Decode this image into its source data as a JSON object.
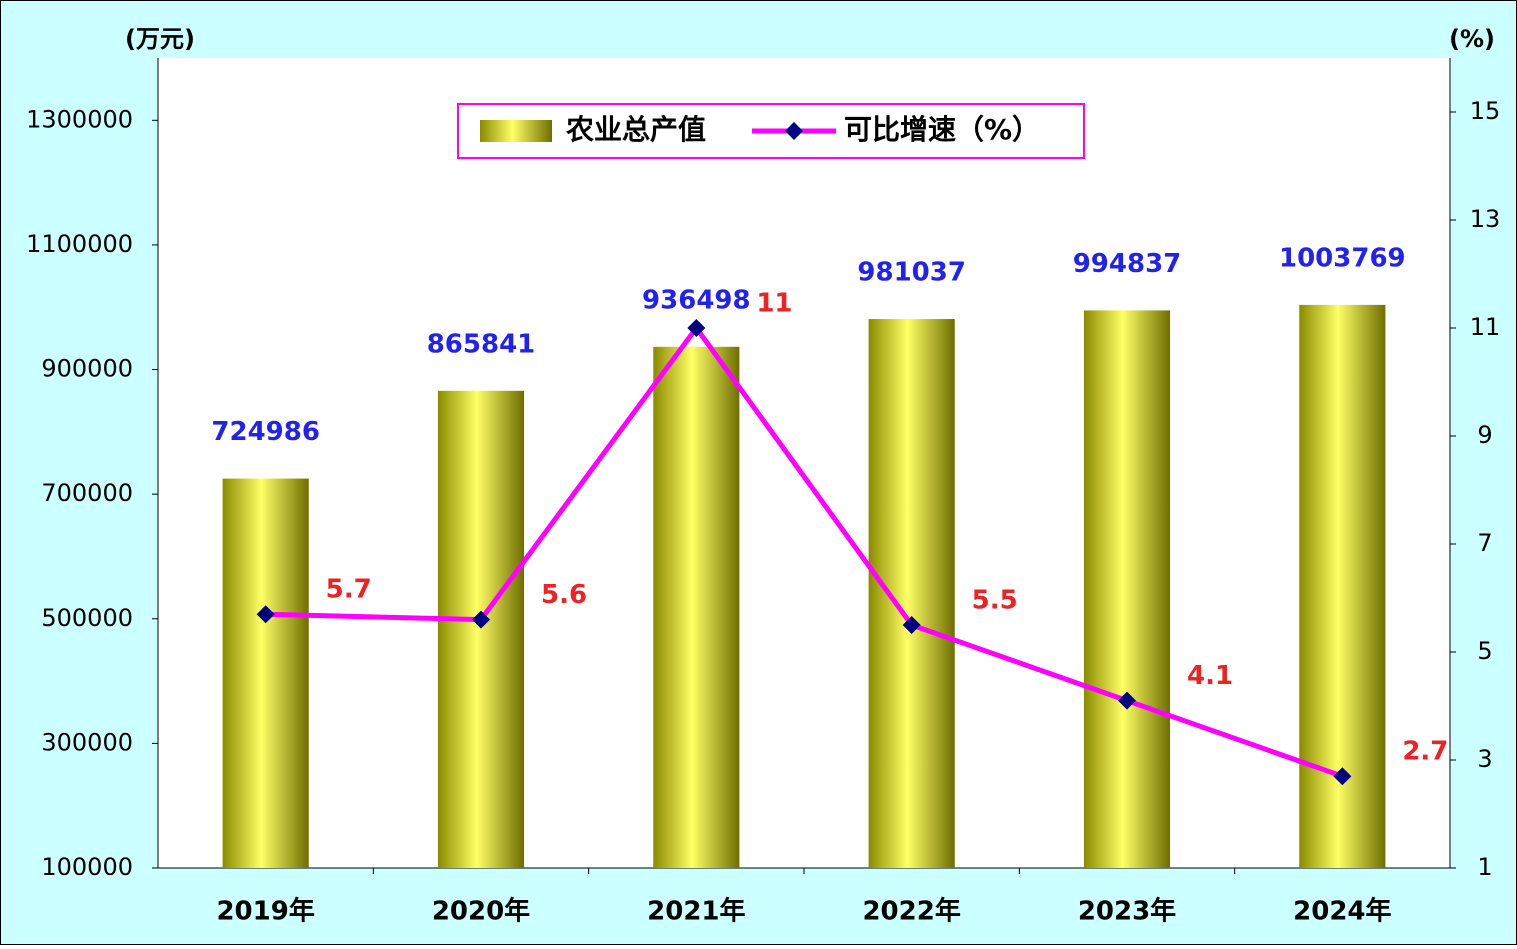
{
  "chart_data": {
    "type": "bar",
    "y_label": "(万元)",
    "y2_label": "(%)",
    "categories": [
      "2019年",
      "2020年",
      "2021年",
      "2022年",
      "2023年",
      "2024年"
    ],
    "series": [
      {
        "name": "农业总产值",
        "type": "bar",
        "color": "#cccc00",
        "values": [
          724986,
          865841,
          936498,
          981037,
          994837,
          1003769
        ]
      },
      {
        "name": "可比增速（%）",
        "type": "line",
        "axis": "y2",
        "color": "#ff00ff",
        "marker_color": "#000080",
        "values": [
          5.7,
          5.6,
          11,
          5.5,
          4.1,
          2.7
        ]
      }
    ],
    "ylim": [
      100000,
      1400000
    ],
    "yticks": [
      100000,
      300000,
      500000,
      700000,
      900000,
      1100000,
      1300000
    ],
    "y2lim": [
      1,
      16
    ],
    "y2ticks": [
      1,
      3,
      5,
      7,
      9,
      11,
      13,
      15
    ],
    "legend": "top"
  }
}
